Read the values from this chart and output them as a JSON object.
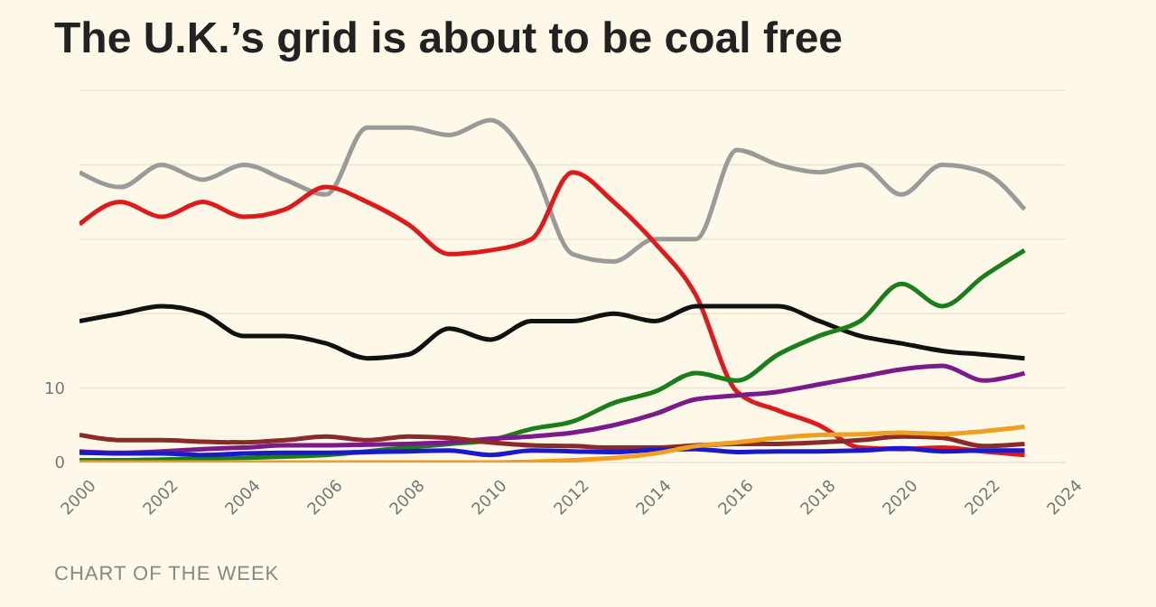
{
  "chart_data": {
    "type": "line",
    "title": "The U.K.’s grid is about to be coal free",
    "annotations": [
      "CHART OF THE WEEK"
    ],
    "x": [
      2000,
      2001,
      2002,
      2003,
      2004,
      2005,
      2006,
      2007,
      2008,
      2009,
      2010,
      2011,
      2012,
      2013,
      2014,
      2015,
      2016,
      2017,
      2018,
      2019,
      2020,
      2021,
      2022,
      2023
    ],
    "series": [
      {
        "color": "#9a9a9a",
        "values": [
          39,
          37,
          40,
          38,
          40,
          38,
          36,
          45,
          45,
          44,
          46,
          40,
          28,
          27,
          30,
          30,
          42,
          40,
          39,
          40,
          36,
          40,
          39,
          34
        ]
      },
      {
        "color": "#e0191b",
        "values": [
          32,
          35,
          33,
          35,
          33,
          34,
          37,
          35,
          32,
          28,
          28.5,
          30,
          39,
          35,
          29.5,
          22.5,
          9.5,
          7,
          5,
          2,
          1.8,
          2,
          1.5,
          1
        ]
      },
      {
        "color": "#111111",
        "values": [
          19,
          20,
          21,
          20,
          17,
          17,
          16,
          14,
          14.5,
          18,
          16.5,
          19,
          19,
          20,
          19,
          21,
          21,
          21,
          19,
          17,
          16,
          15,
          14.5,
          14
        ]
      },
      {
        "color": "#1a7f1a",
        "values": [
          0.3,
          0.3,
          0.4,
          0.5,
          0.6,
          0.8,
          1,
          1.5,
          2,
          2.5,
          3,
          4.5,
          5.5,
          8,
          9.5,
          12,
          11,
          14.5,
          17,
          19,
          24,
          21,
          25,
          28.5
        ]
      },
      {
        "color": "#7b1a8a",
        "values": [
          1.5,
          1.3,
          1.5,
          1.8,
          2,
          2.3,
          2.3,
          2.4,
          2.5,
          2.7,
          3.2,
          3.5,
          4,
          5,
          6.5,
          8.5,
          9,
          9.5,
          10.5,
          11.5,
          12.5,
          13,
          11,
          12
        ]
      },
      {
        "color": "#8b2a2a",
        "values": [
          3.7,
          3,
          3,
          2.8,
          2.7,
          3,
          3.5,
          3,
          3.5,
          3.3,
          2.7,
          2.3,
          2.2,
          2,
          2,
          2.3,
          2.5,
          2.5,
          2.7,
          3,
          3.5,
          3.3,
          2.2,
          2.5
        ]
      },
      {
        "color": "#1a1acc",
        "values": [
          1.3,
          1.2,
          1.2,
          1,
          1.2,
          1.3,
          1.3,
          1.4,
          1.5,
          1.6,
          1,
          1.6,
          1.5,
          1.4,
          1.7,
          1.8,
          1.4,
          1.5,
          1.5,
          1.6,
          1.9,
          1.5,
          1.6,
          1.6
        ]
      },
      {
        "color": "#f0a020",
        "values": [
          0,
          0,
          0,
          0,
          0,
          0,
          0,
          0,
          0,
          0,
          0,
          0.1,
          0.3,
          0.6,
          1.2,
          2.2,
          2.7,
          3.3,
          3.7,
          3.8,
          4,
          3.8,
          4.2,
          4.8
        ]
      }
    ],
    "xlim": [
      2000,
      2024
    ],
    "xticks": [
      2000,
      2002,
      2004,
      2006,
      2008,
      2010,
      2012,
      2014,
      2016,
      2018,
      2020,
      2022,
      2024
    ],
    "ylim": [
      0,
      50
    ],
    "yticks": [
      0,
      10,
      {
        "value": 20,
        "label": null
      },
      {
        "value": 30,
        "label": null
      },
      {
        "value": 40,
        "label": null
      }
    ],
    "grid": "y"
  }
}
